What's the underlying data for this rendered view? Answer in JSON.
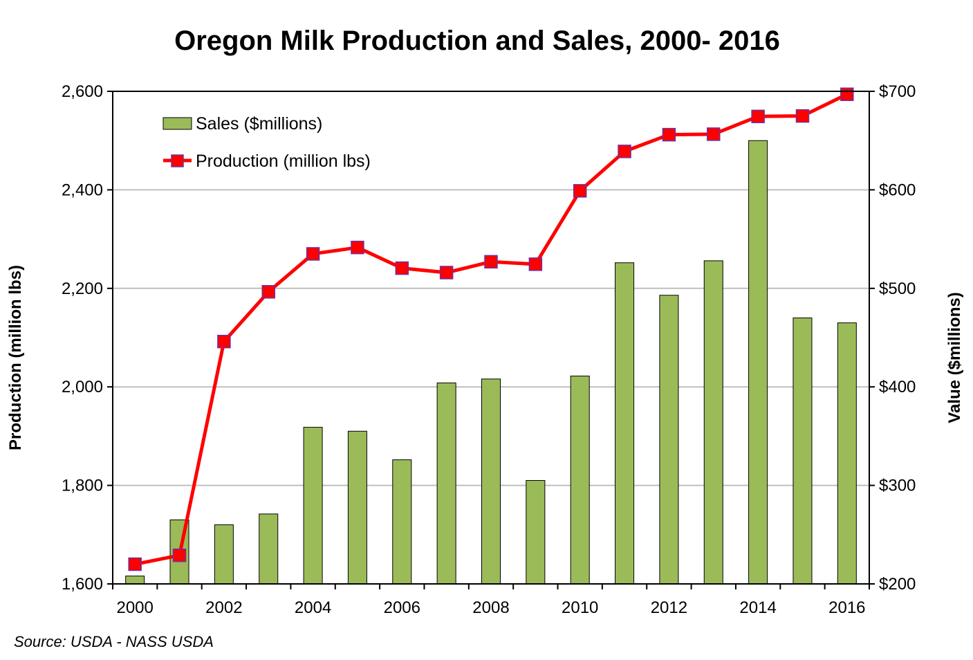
{
  "chart_data": {
    "type": "bar",
    "title": "Oregon Milk Production and Sales, 2000- 2016",
    "source": "Source: USDA - NASS USDA",
    "x": [
      2000,
      2001,
      2002,
      2003,
      2004,
      2005,
      2006,
      2007,
      2008,
      2009,
      2010,
      2011,
      2012,
      2013,
      2014,
      2015,
      2016
    ],
    "x_tick_labels": [
      "2000",
      "2002",
      "2004",
      "2006",
      "2008",
      "2010",
      "2012",
      "2014",
      "2016"
    ],
    "y_left": {
      "label": "Production (million lbs)",
      "range": [
        1600,
        2600
      ],
      "tick_labels": [
        "1,600",
        "1,800",
        "2,000",
        "2,200",
        "2,400",
        "2,600"
      ],
      "tick_values": [
        1600,
        1800,
        2000,
        2200,
        2400,
        2600
      ]
    },
    "y_right": {
      "label": "Value ($millions)",
      "range": [
        200,
        700
      ],
      "tick_labels": [
        "$200",
        "$300",
        "$400",
        "$500",
        "$600",
        "$700"
      ],
      "tick_values": [
        200,
        300,
        400,
        500,
        600,
        700
      ]
    },
    "grid": true,
    "legend_position": "top-left",
    "series": [
      {
        "name": "Sales ($millions)",
        "type": "bar",
        "axis": "right",
        "color": "#9bbb59",
        "values": [
          208,
          265,
          260,
          271,
          359,
          355,
          326,
          404,
          408,
          305,
          411,
          526,
          493,
          528,
          650,
          470,
          465
        ]
      },
      {
        "name": "Production (million lbs)",
        "type": "line",
        "axis": "left",
        "color": "#ff0000",
        "marker_color": "#ff0000",
        "marker_edge_color": "#7030a0",
        "values": [
          1640,
          1658,
          2092,
          2193,
          2270,
          2283,
          2241,
          2232,
          2254,
          2249,
          2398,
          2478,
          2512,
          2513,
          2549,
          2550,
          2594
        ]
      }
    ]
  }
}
